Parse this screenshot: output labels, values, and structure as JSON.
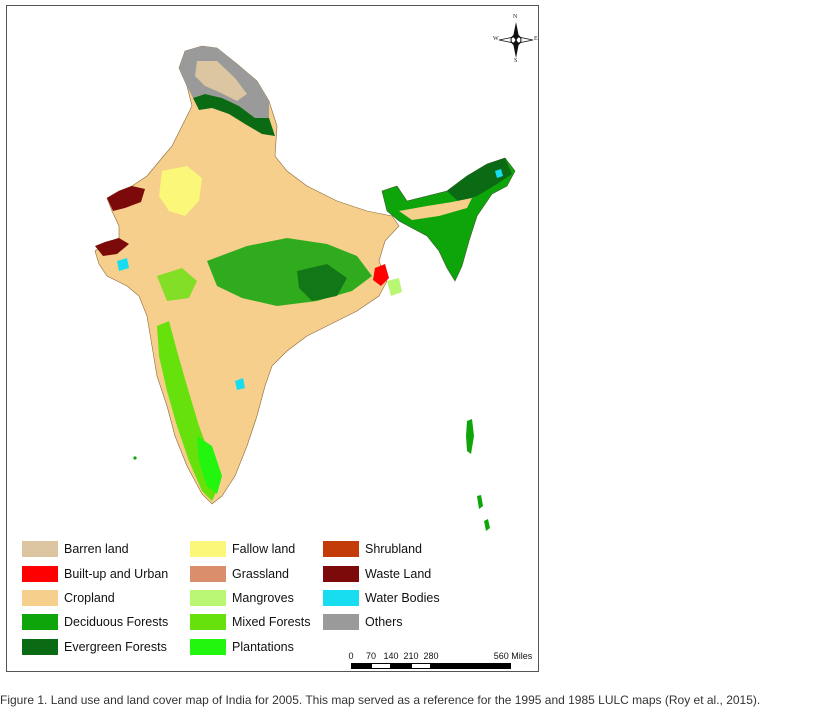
{
  "compass": {
    "n": "N",
    "s": "S",
    "e": "E",
    "w": "W"
  },
  "legend": [
    {
      "label": "Barren land",
      "color": "#dcc5a1"
    },
    {
      "label": "Built-up and Urban",
      "color": "#ff0000"
    },
    {
      "label": "Cropland",
      "color": "#f6cf8c"
    },
    {
      "label": "Deciduous Forests",
      "color": "#0ea50a"
    },
    {
      "label": "Evergreen Forests",
      "color": "#0b6a14"
    },
    {
      "label": "Fallow land",
      "color": "#fbf779"
    },
    {
      "label": "Grassland",
      "color": "#da8e6c"
    },
    {
      "label": "Mangroves",
      "color": "#b9f674"
    },
    {
      "label": "Mixed Forests",
      "color": "#66e10c"
    },
    {
      "label": "Plantations",
      "color": "#22f50e"
    },
    {
      "label": "Shrubland",
      "color": "#c23b09"
    },
    {
      "label": "Waste Land",
      "color": "#7d0a0a"
    },
    {
      "label": "Water Bodies",
      "color": "#18dcf0"
    },
    {
      "label": "Others",
      "color": "#9a9a9a"
    }
  ],
  "scale": {
    "ticks": [
      "0",
      "70",
      "140",
      "210",
      "280",
      "560 Miles"
    ]
  },
  "caption": "Figure 1. Land use and land cover map of India for 2005. This map served as a reference for the 1995 and 1985 LULC maps (Roy et al., 2015)."
}
